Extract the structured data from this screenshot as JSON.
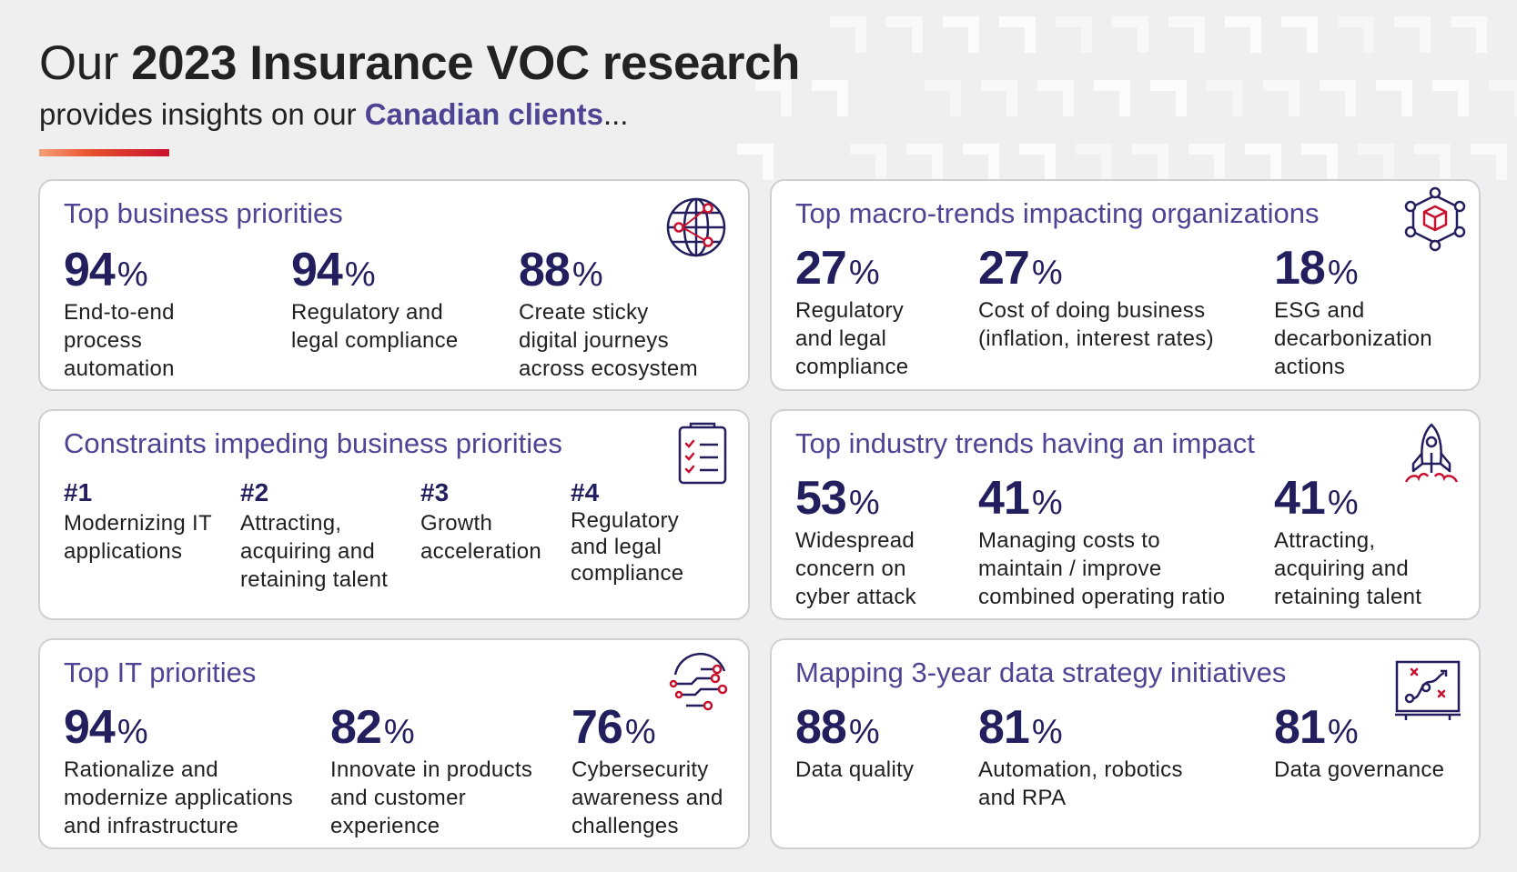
{
  "header": {
    "title_prefix": "Our",
    "title_bold": "2023 Insurance VOC research",
    "subtitle_prefix": "provides insights on our",
    "subtitle_accent": "Canadian clients",
    "subtitle_suffix": "..."
  },
  "colors": {
    "accent": "#4d4594",
    "number": "#231f5e",
    "icon_red": "#c8102e",
    "gradient": [
      "#f7a07a",
      "#e8502b",
      "#c8102e"
    ]
  },
  "cards": {
    "business_priorities": {
      "title": "Top business priorities",
      "icon": "globe-network-icon",
      "items": [
        {
          "value": "94",
          "unit": "%",
          "label_lines": [
            "End-to-end",
            "process",
            "automation"
          ]
        },
        {
          "value": "94",
          "unit": "%",
          "label_lines": [
            "Regulatory and",
            "legal compliance"
          ]
        },
        {
          "value": "88",
          "unit": "%",
          "label_lines": [
            "Create sticky",
            "digital journeys",
            "across ecosystem"
          ]
        }
      ]
    },
    "macro_trends": {
      "title": "Top macro-trends impacting organizations",
      "icon": "cube-network-icon",
      "items": [
        {
          "value": "27",
          "unit": "%",
          "label_lines": [
            "Regulatory",
            "and legal",
            "compliance"
          ]
        },
        {
          "value": "27",
          "unit": "%",
          "label_lines": [
            "Cost of doing business",
            "(inflation, interest rates)"
          ]
        },
        {
          "value": "18",
          "unit": "%",
          "label_lines": [
            "ESG and",
            "decarbonization",
            "actions"
          ]
        }
      ]
    },
    "constraints": {
      "title": "Constraints impeding business priorities",
      "icon": "checklist-icon",
      "items": [
        {
          "rank": "#1",
          "label_lines": [
            "Modernizing IT",
            "applications"
          ]
        },
        {
          "rank": "#2",
          "label_lines": [
            "Attracting,",
            "acquiring and",
            "retaining talent"
          ]
        },
        {
          "rank": "#3",
          "label_lines": [
            "Growth",
            "acceleration"
          ]
        },
        {
          "rank": "#4",
          "label_lines": [
            "Regulatory",
            "and legal",
            "compliance"
          ]
        }
      ]
    },
    "industry_trends": {
      "title": "Top industry trends having an impact",
      "icon": "rocket-icon",
      "items": [
        {
          "value": "53",
          "unit": "%",
          "label_lines": [
            "Widespread",
            "concern on",
            "cyber attack"
          ]
        },
        {
          "value": "41",
          "unit": "%",
          "label_lines": [
            "Managing costs to",
            "maintain / improve",
            "combined operating ratio"
          ]
        },
        {
          "value": "41",
          "unit": "%",
          "label_lines": [
            "Attracting,",
            "acquiring and",
            "retaining talent"
          ]
        }
      ]
    },
    "it_priorities": {
      "title": "Top IT priorities",
      "icon": "circuit-icon",
      "items": [
        {
          "value": "94",
          "unit": "%",
          "label_lines": [
            "Rationalize and",
            "modernize applications",
            "and infrastructure"
          ]
        },
        {
          "value": "82",
          "unit": "%",
          "label_lines": [
            "Innovate in products",
            "and customer",
            "experience"
          ]
        },
        {
          "value": "76",
          "unit": "%",
          "label_lines": [
            "Cybersecurity",
            "awareness and",
            "challenges"
          ]
        }
      ]
    },
    "data_strategy": {
      "title": "Mapping 3-year data strategy initiatives",
      "icon": "strategy-board-icon",
      "items": [
        {
          "value": "88",
          "unit": "%",
          "label_lines": [
            "Data quality"
          ]
        },
        {
          "value": "81",
          "unit": "%",
          "label_lines": [
            "Automation, robotics",
            "and RPA"
          ]
        },
        {
          "value": "81",
          "unit": "%",
          "label_lines": [
            "Data governance"
          ]
        }
      ]
    }
  }
}
